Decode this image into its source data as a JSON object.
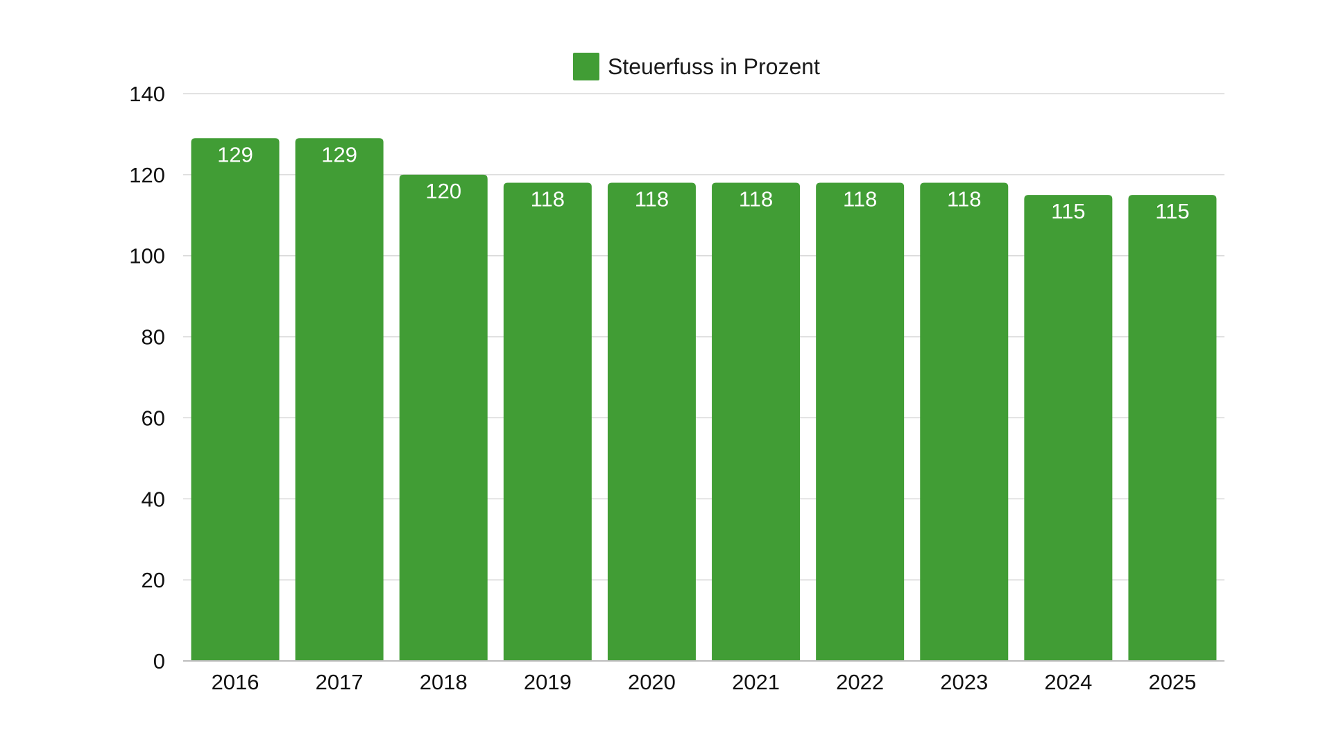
{
  "chart_data": {
    "type": "bar",
    "categories": [
      "2016",
      "2017",
      "2018",
      "2019",
      "2020",
      "2021",
      "2022",
      "2023",
      "2024",
      "2025"
    ],
    "series": [
      {
        "name": "Steuerfuss in Prozent",
        "values": [
          129,
          129,
          120,
          118,
          118,
          118,
          118,
          118,
          115,
          115
        ],
        "color": "#419d35"
      }
    ],
    "data_labels": [
      "129",
      "129",
      "120",
      "118",
      "118",
      "118",
      "118",
      "118",
      "115",
      "115"
    ],
    "y_ticks": [
      "0",
      "20",
      "40",
      "60",
      "80",
      "100",
      "120",
      "140"
    ],
    "ylim": [
      0,
      140
    ],
    "grid": true,
    "legend_position": "top-center",
    "title": "",
    "xlabel": "",
    "ylabel": ""
  }
}
